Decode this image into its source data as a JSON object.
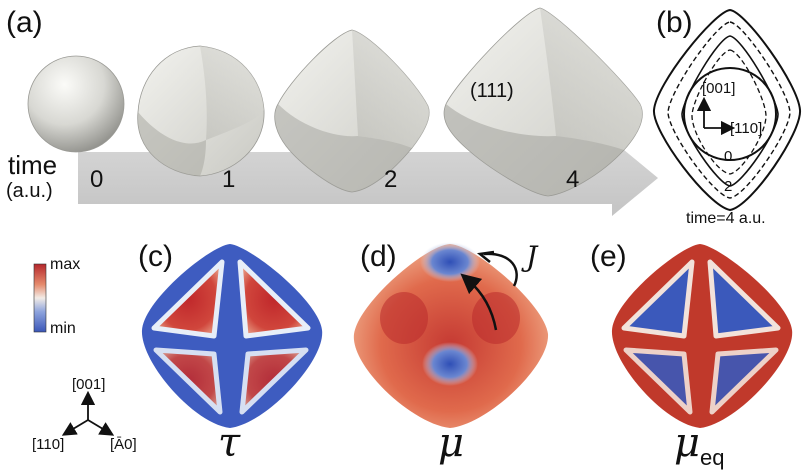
{
  "panels": {
    "a": "(a)",
    "b": "(b)",
    "c": "(c)",
    "d": "(d)",
    "e": "(e)"
  },
  "timeline": {
    "label_line1": "time",
    "label_line2": "(a.u.)",
    "ticks": [
      "0",
      "1",
      "2",
      "4"
    ]
  },
  "crystal_label": "(111)",
  "outline": {
    "axis_up": "[001]",
    "axis_right": "[110]",
    "time_marks": [
      "0",
      "2"
    ],
    "caption": "time=4 a.u."
  },
  "colorbar": {
    "max_label": "max",
    "min_label": "min",
    "max_color": "#b5272c",
    "min_color": "#3a56b8"
  },
  "triad": {
    "up": "[001]",
    "left": "[110]",
    "right": "[Ā0]"
  },
  "symbols": {
    "tau": "τ",
    "mu": "μ",
    "mu_eq_base": "μ",
    "mu_eq_sub": "eq",
    "flux": "J"
  }
}
